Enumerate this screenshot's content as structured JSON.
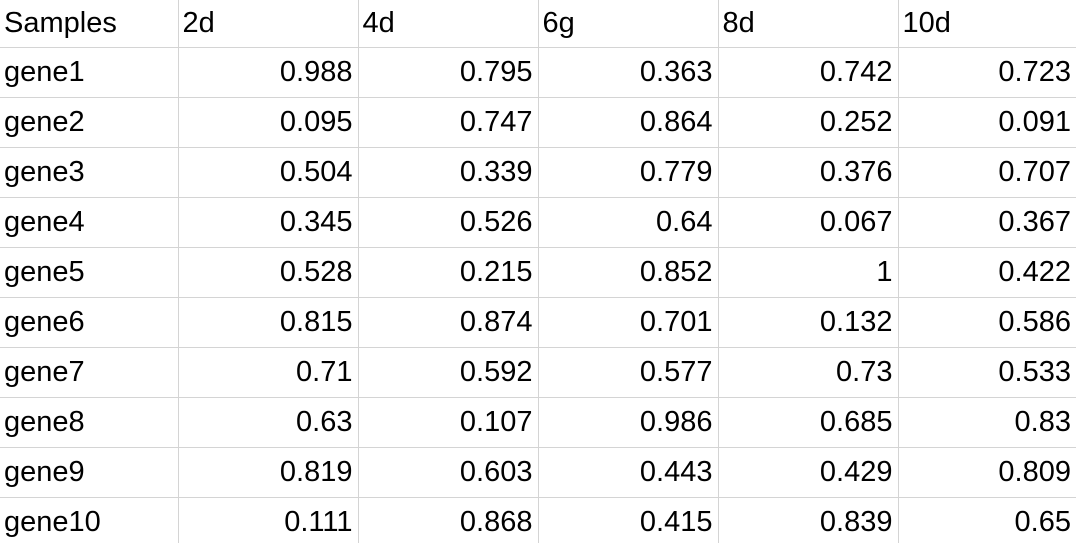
{
  "table": {
    "headers": [
      "Samples",
      "2d",
      "4d",
      "6g",
      "8d",
      "10d"
    ],
    "rows": [
      {
        "label": "gene1",
        "values": [
          "0.988",
          "0.795",
          "0.363",
          "0.742",
          "0.723"
        ]
      },
      {
        "label": "gene2",
        "values": [
          "0.095",
          "0.747",
          "0.864",
          "0.252",
          "0.091"
        ]
      },
      {
        "label": "gene3",
        "values": [
          "0.504",
          "0.339",
          "0.779",
          "0.376",
          "0.707"
        ]
      },
      {
        "label": "gene4",
        "values": [
          "0.345",
          "0.526",
          "0.64",
          "0.067",
          "0.367"
        ]
      },
      {
        "label": "gene5",
        "values": [
          "0.528",
          "0.215",
          "0.852",
          "1",
          "0.422"
        ]
      },
      {
        "label": "gene6",
        "values": [
          "0.815",
          "0.874",
          "0.701",
          "0.132",
          "0.586"
        ]
      },
      {
        "label": "gene7",
        "values": [
          "0.71",
          "0.592",
          "0.577",
          "0.73",
          "0.533"
        ]
      },
      {
        "label": "gene8",
        "values": [
          "0.63",
          "0.107",
          "0.986",
          "0.685",
          "0.83"
        ]
      },
      {
        "label": "gene9",
        "values": [
          "0.819",
          "0.603",
          "0.443",
          "0.429",
          "0.809"
        ]
      },
      {
        "label": "gene10",
        "values": [
          "0.111",
          "0.868",
          "0.415",
          "0.839",
          "0.65"
        ]
      }
    ]
  },
  "colors": {
    "gridline": "#d4d4d4",
    "text": "#000000",
    "background": "#ffffff"
  }
}
